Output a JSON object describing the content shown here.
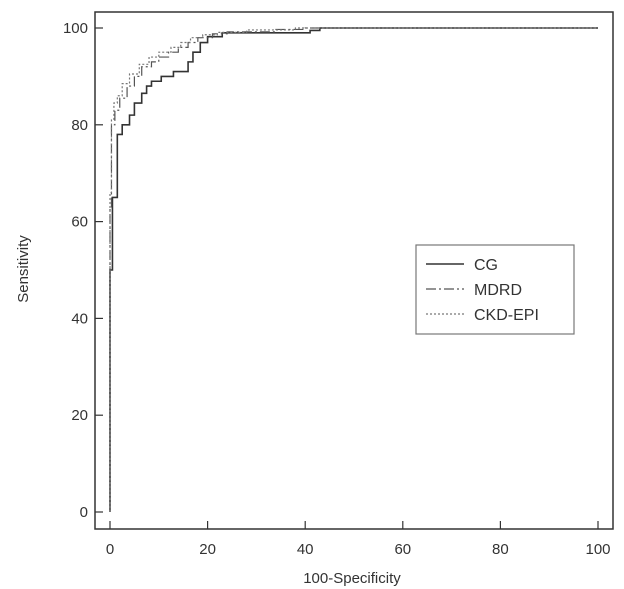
{
  "chart_data": {
    "type": "line",
    "subtype": "step (ROC curves)",
    "title": "",
    "xlabel": "100-Specificity",
    "ylabel": "Sensitivity",
    "xlim": [
      0,
      100
    ],
    "ylim": [
      0,
      100
    ],
    "xticks": [
      0,
      20,
      40,
      60,
      80,
      100
    ],
    "yticks": [
      0,
      20,
      40,
      60,
      80,
      100
    ],
    "grid": false,
    "legend_position": "right-center",
    "series": [
      {
        "name": "CG",
        "line_style": "solid",
        "color": "#333333",
        "points": [
          [
            0,
            0
          ],
          [
            0,
            50
          ],
          [
            0.5,
            50
          ],
          [
            0.5,
            65
          ],
          [
            1.5,
            65
          ],
          [
            1.5,
            78
          ],
          [
            2.5,
            78
          ],
          [
            2.5,
            80
          ],
          [
            4,
            80
          ],
          [
            4,
            82
          ],
          [
            5,
            82
          ],
          [
            5,
            84.5
          ],
          [
            6.5,
            84.5
          ],
          [
            6.5,
            86.5
          ],
          [
            7.5,
            86.5
          ],
          [
            7.5,
            88
          ],
          [
            8.5,
            88
          ],
          [
            8.5,
            89
          ],
          [
            10.5,
            89
          ],
          [
            10.5,
            90
          ],
          [
            13,
            90
          ],
          [
            13,
            91
          ],
          [
            16,
            91
          ],
          [
            16,
            93
          ],
          [
            17,
            93
          ],
          [
            17,
            95
          ],
          [
            18.5,
            95
          ],
          [
            18.5,
            97
          ],
          [
            20,
            97
          ],
          [
            20,
            98.2
          ],
          [
            23,
            98.2
          ],
          [
            23,
            99
          ],
          [
            41,
            99
          ],
          [
            41,
            99.5
          ],
          [
            43,
            99.5
          ],
          [
            43,
            100
          ],
          [
            100,
            100
          ]
        ]
      },
      {
        "name": "MDRD",
        "line_style": "dashdot",
        "color": "#555555",
        "points": [
          [
            0,
            0
          ],
          [
            0,
            63
          ],
          [
            0.3,
            63
          ],
          [
            0.3,
            80
          ],
          [
            1,
            80
          ],
          [
            1,
            83
          ],
          [
            2,
            83
          ],
          [
            2,
            85.5
          ],
          [
            3.5,
            85.5
          ],
          [
            3.5,
            88
          ],
          [
            5,
            88
          ],
          [
            5,
            90
          ],
          [
            6.5,
            90
          ],
          [
            6.5,
            92
          ],
          [
            8.5,
            92
          ],
          [
            8.5,
            93
          ],
          [
            10,
            93
          ],
          [
            10,
            94
          ],
          [
            12,
            94
          ],
          [
            12,
            95
          ],
          [
            14,
            95
          ],
          [
            14,
            96
          ],
          [
            16,
            96
          ],
          [
            16,
            97
          ],
          [
            18,
            97
          ],
          [
            18,
            98
          ],
          [
            21,
            98
          ],
          [
            21,
            98.8
          ],
          [
            24,
            98.8
          ],
          [
            24,
            99.2
          ],
          [
            34,
            99.2
          ],
          [
            34,
            99.7
          ],
          [
            40,
            99.7
          ],
          [
            40,
            100
          ],
          [
            100,
            100
          ]
        ]
      },
      {
        "name": "CKD-EPI",
        "line_style": "dotted",
        "color": "#777777",
        "points": [
          [
            0,
            0
          ],
          [
            0,
            66
          ],
          [
            0.3,
            66
          ],
          [
            0.3,
            81
          ],
          [
            0.8,
            81
          ],
          [
            0.8,
            84.5
          ],
          [
            1.5,
            84.5
          ],
          [
            1.5,
            86
          ],
          [
            2.5,
            86
          ],
          [
            2.5,
            88.5
          ],
          [
            4,
            88.5
          ],
          [
            4,
            90.5
          ],
          [
            6,
            90.5
          ],
          [
            6,
            92.5
          ],
          [
            8,
            92.5
          ],
          [
            8,
            94
          ],
          [
            10,
            94
          ],
          [
            10,
            95
          ],
          [
            12.5,
            95
          ],
          [
            12.5,
            96
          ],
          [
            14.5,
            96
          ],
          [
            14.5,
            97
          ],
          [
            16.5,
            97
          ],
          [
            16.5,
            98
          ],
          [
            19,
            98
          ],
          [
            19,
            98.6
          ],
          [
            22,
            98.6
          ],
          [
            22,
            99.1
          ],
          [
            28,
            99.1
          ],
          [
            28,
            99.6
          ],
          [
            38,
            99.6
          ],
          [
            38,
            100
          ],
          [
            100,
            100
          ]
        ]
      }
    ]
  }
}
